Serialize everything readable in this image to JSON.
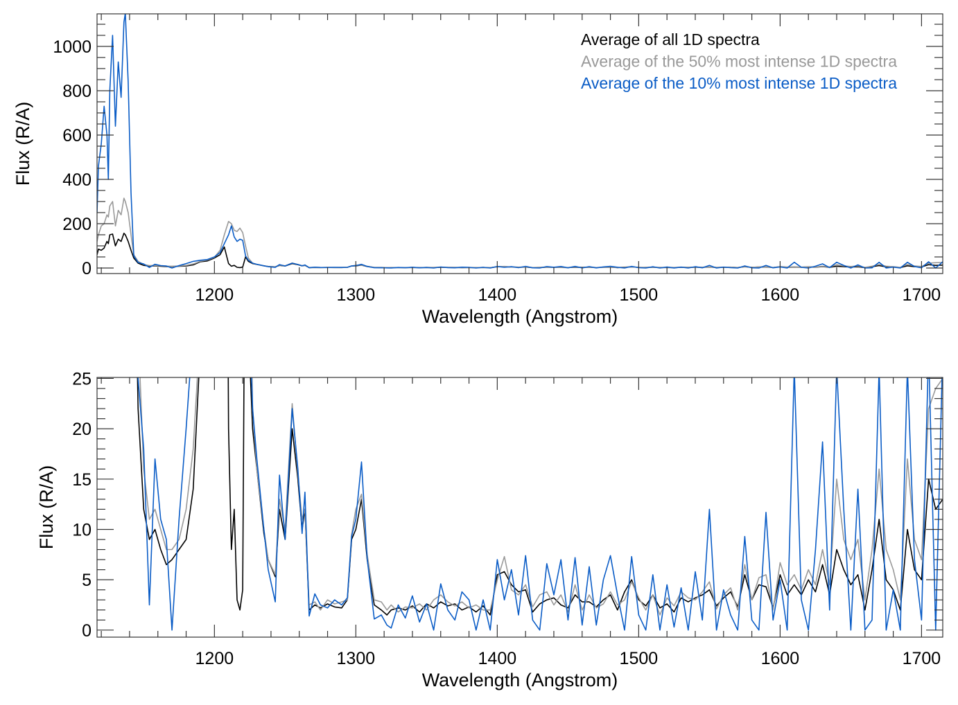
{
  "chart_data": {
    "type": "line",
    "legend": {
      "placement": "top-right",
      "entries": [
        {
          "label": "Average of all 1D spectra",
          "color": "#000000"
        },
        {
          "label": "Average of the 50% most intense 1D spectra",
          "color": "#999999"
        },
        {
          "label": "Average of the 10% most intense 1D spectra",
          "color": "#0a5cc6"
        }
      ]
    },
    "wavelength": [
      1117,
      1118,
      1120,
      1122,
      1124,
      1125,
      1126,
      1128,
      1130,
      1132,
      1134,
      1136,
      1137,
      1139,
      1141,
      1143,
      1146,
      1150,
      1154,
      1158,
      1162,
      1166,
      1170,
      1175,
      1180,
      1185,
      1190,
      1195,
      1200,
      1204,
      1207,
      1210,
      1212,
      1214,
      1216,
      1218,
      1220,
      1222,
      1224,
      1227,
      1230,
      1235,
      1238,
      1243,
      1246,
      1250,
      1255,
      1259,
      1262,
      1264,
      1267,
      1271,
      1275,
      1280,
      1285,
      1290,
      1294,
      1297,
      1300,
      1304,
      1308,
      1313,
      1318,
      1322,
      1325,
      1330,
      1335,
      1340,
      1345,
      1350,
      1355,
      1360,
      1365,
      1370,
      1375,
      1380,
      1385,
      1390,
      1395,
      1400,
      1405,
      1410,
      1415,
      1420,
      1425,
      1430,
      1435,
      1440,
      1445,
      1450,
      1455,
      1460,
      1465,
      1470,
      1475,
      1480,
      1485,
      1490,
      1495,
      1500,
      1505,
      1510,
      1515,
      1520,
      1525,
      1530,
      1535,
      1540,
      1545,
      1550,
      1555,
      1560,
      1565,
      1570,
      1575,
      1580,
      1585,
      1590,
      1595,
      1600,
      1605,
      1610,
      1615,
      1620,
      1625,
      1630,
      1635,
      1640,
      1645,
      1650,
      1655,
      1660,
      1665,
      1670,
      1675,
      1680,
      1685,
      1690,
      1695,
      1700,
      1705,
      1710,
      1715
    ],
    "series": [
      {
        "name": "Average of all 1D spectra",
        "color": "#000000",
        "values": [
          60,
          85,
          80,
          90,
          120,
          110,
          150,
          153,
          100,
          130,
          120,
          157,
          150,
          120,
          80,
          45,
          22,
          12,
          9,
          10,
          8,
          6.5,
          7,
          8,
          9,
          14,
          28,
          32,
          45,
          60,
          95,
          20,
          8,
          12,
          3,
          2,
          4,
          50,
          30,
          20,
          16,
          9.6,
          7,
          5.3,
          12,
          9,
          20,
          15,
          10,
          12,
          2,
          2.5,
          2.2,
          2.6,
          2.3,
          2.2,
          3,
          9,
          10,
          13,
          7,
          2.5,
          2,
          1.5,
          2,
          2.2,
          2,
          2.4,
          1.8,
          2.6,
          2.2,
          2.8,
          2.4,
          2.6,
          2,
          2.3,
          1.8,
          2.4,
          1.5,
          5.5,
          5.8,
          4.5,
          3.8,
          4,
          1.8,
          2.6,
          3,
          3.2,
          2.5,
          2.2,
          3.5,
          2.8,
          2.8,
          2.3,
          3,
          3.5,
          2,
          3.8,
          5,
          3,
          2.4,
          3.5,
          2.2,
          2.6,
          1.8,
          3.2,
          2.8,
          3.2,
          3.5,
          4,
          2.4,
          3.2,
          3.8,
          2.3,
          5.5,
          3,
          4.5,
          4.3,
          2.2,
          5.5,
          3.5,
          4.5,
          3.5,
          5,
          3.8,
          6.5,
          3.5,
          8,
          6,
          4.5,
          5.5,
          2,
          6,
          11,
          5,
          4,
          2,
          10,
          6,
          5,
          15,
          12,
          13
        ]
      },
      {
        "name": "Average of the 50% most intense 1D spectra",
        "color": "#999999",
        "values": [
          120,
          150,
          190,
          200,
          240,
          230,
          280,
          300,
          190,
          260,
          240,
          315,
          300,
          250,
          150,
          60,
          30,
          16,
          11,
          12,
          10,
          8,
          8,
          9,
          12,
          18,
          30,
          36,
          48,
          80,
          150,
          210,
          200,
          170,
          165,
          180,
          160,
          100,
          45,
          22,
          16,
          10,
          7,
          5.5,
          13,
          10,
          22.5,
          15.5,
          11,
          12,
          2.5,
          2.8,
          2,
          3,
          2.6,
          2.8,
          3,
          9.5,
          12,
          13.5,
          7.5,
          3,
          2.8,
          2,
          2.5,
          1.8,
          2.3,
          2.2,
          2.6,
          2,
          3,
          3.5,
          2.8,
          2.4,
          2.8,
          2.2,
          2.5,
          2,
          2,
          5,
          7.3,
          4,
          3.5,
          4.5,
          2.3,
          3.5,
          3.8,
          2.5,
          3.5,
          1.8,
          4.5,
          2,
          3.5,
          2.2,
          2.6,
          3.8,
          2.5,
          3,
          4.8,
          3.2,
          2,
          3.5,
          1.5,
          3.2,
          2.4,
          3.8,
          3.2,
          3,
          3.8,
          4.8,
          2.1,
          3.5,
          4.2,
          2,
          6.5,
          3,
          5.2,
          5.5,
          2,
          6.7,
          4.5,
          5.5,
          4,
          6,
          4.5,
          8,
          4.5,
          15,
          9,
          7,
          9,
          3,
          8,
          16,
          8,
          6,
          3,
          17,
          9,
          7,
          22,
          24,
          25
        ]
      },
      {
        "name": "Average of the 10% most intense 1D spectra",
        "color": "#0a5cc6",
        "values": [
          250,
          460,
          560,
          730,
          600,
          400,
          800,
          1050,
          640,
          930,
          770,
          1110,
          1150,
          840,
          340,
          55,
          25,
          18,
          2.5,
          17,
          11,
          9,
          0,
          11,
          20,
          30,
          35,
          38,
          50,
          70,
          110,
          150,
          190,
          140,
          120,
          130,
          125,
          55,
          35,
          22,
          17,
          10,
          6,
          2.8,
          15.4,
          9,
          22,
          16,
          9.6,
          13.7,
          1.4,
          3.6,
          2.5,
          2.2,
          3,
          2.5,
          3.2,
          9.3,
          11,
          16.7,
          7.1,
          1.1,
          1.5,
          0.5,
          0.2,
          2.5,
          1.2,
          3.4,
          0.8,
          2.6,
          0,
          4.6,
          2,
          1,
          3.8,
          3,
          0,
          3,
          0,
          7,
          3,
          6,
          1.5,
          7.4,
          1,
          0,
          6.6,
          3.5,
          7,
          1,
          7.2,
          0.5,
          6.3,
          0.5,
          5,
          7.4,
          3.5,
          0,
          7.3,
          1.5,
          0,
          5.5,
          0,
          4.5,
          0.3,
          4.2,
          0,
          5.8,
          1,
          12,
          0,
          4,
          1.5,
          0,
          9.3,
          1,
          0,
          11.7,
          1,
          5,
          0,
          26,
          3,
          0,
          8,
          18.7,
          2,
          26,
          12,
          0,
          14,
          0,
          1,
          26,
          0,
          4,
          0,
          26,
          7,
          1,
          28,
          0,
          28
        ]
      }
    ],
    "panels": [
      {
        "xlabel": "Wavelength (Angstrom)",
        "ylabel": "Flux (R/A)",
        "xlim": [
          1117,
          1715
        ],
        "ylim": [
          -25,
          1147
        ],
        "xticks": [
          1200,
          1300,
          1400,
          1500,
          1600,
          1700
        ],
        "xtick_labels": [
          "1200",
          "1300",
          "1400",
          "1500",
          "1600",
          "1700"
        ],
        "xminor_step": 20,
        "yticks": [
          0,
          200,
          400,
          600,
          800,
          1000
        ],
        "ytick_labels": [
          "0",
          "200",
          "400",
          "600",
          "800",
          "1000"
        ],
        "yminor_step": 50,
        "grid": false,
        "show_legend": true
      },
      {
        "xlabel": "Wavelength (Angstrom)",
        "ylabel": "Flux (R/A)",
        "xlim": [
          1117,
          1715
        ],
        "ylim": [
          -0.7,
          25.1
        ],
        "xticks": [
          1200,
          1300,
          1400,
          1500,
          1600,
          1700
        ],
        "xtick_labels": [
          "1200",
          "1300",
          "1400",
          "1500",
          "1600",
          "1700"
        ],
        "xminor_step": 20,
        "yticks": [
          0,
          5,
          10,
          15,
          20,
          25
        ],
        "ytick_labels": [
          "0",
          "5",
          "10",
          "15",
          "20",
          "25"
        ],
        "yminor_step": 1,
        "grid": false,
        "show_legend": false
      }
    ]
  }
}
